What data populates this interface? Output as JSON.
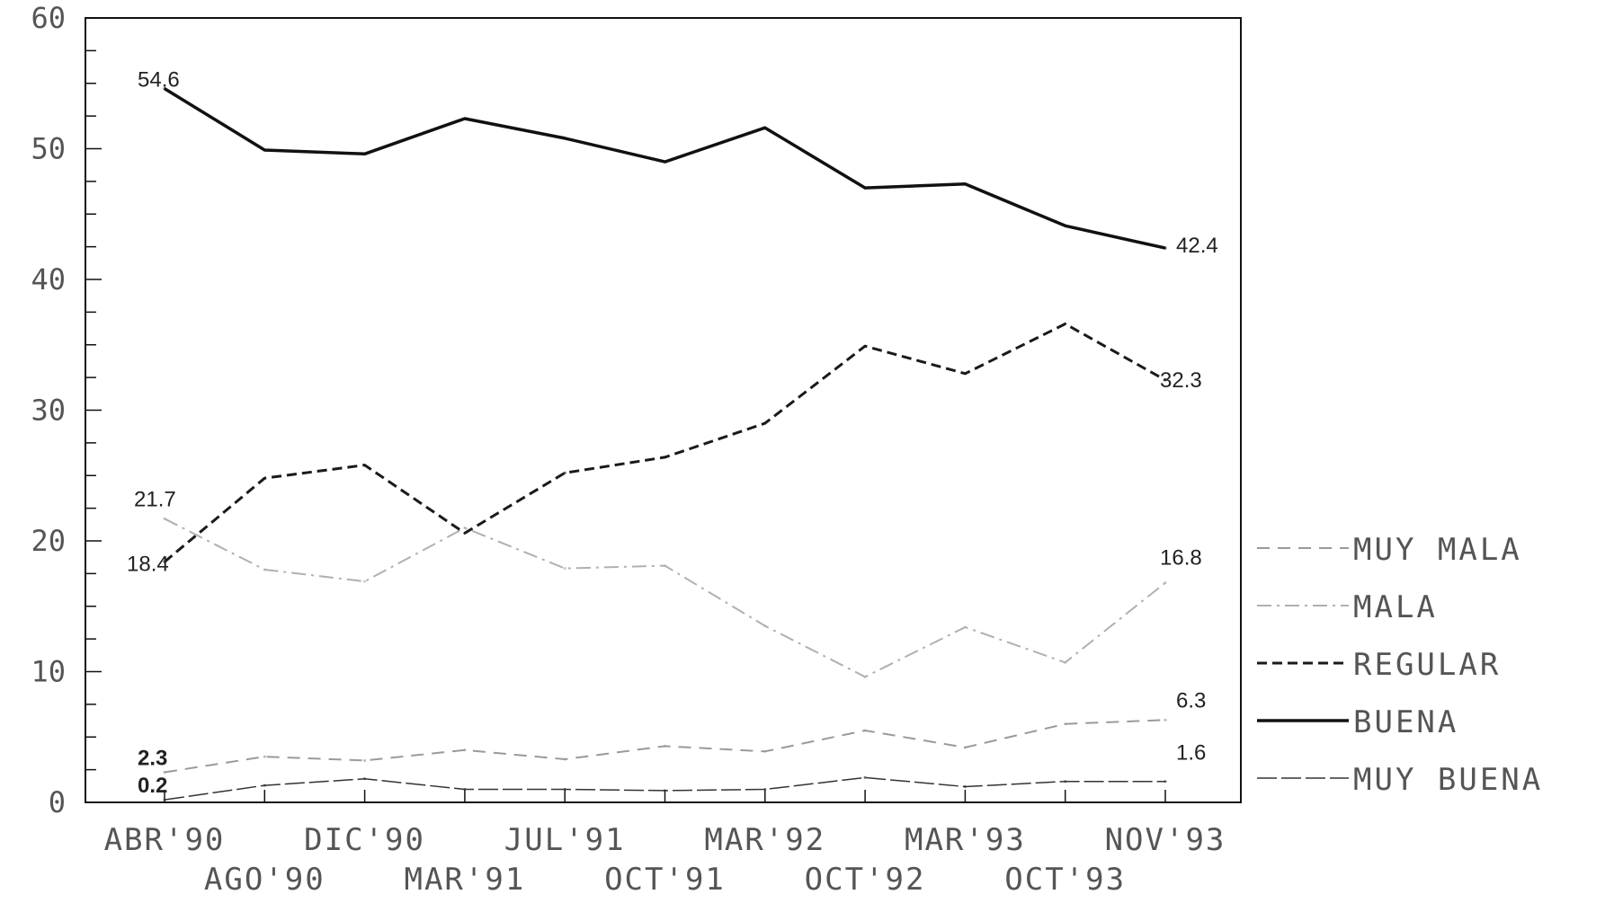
{
  "chart_data": {
    "type": "line",
    "title": "",
    "xlabel": "",
    "ylabel": "",
    "ylim": [
      0,
      60
    ],
    "yticks": [
      "0",
      "10",
      "20",
      "30",
      "40",
      "50",
      "60"
    ],
    "categories": [
      "ABR'90",
      "AGO'90",
      "DIC'90",
      "MAR'91",
      "JUL'91",
      "OCT'91",
      "MAR'92",
      "OCT'92",
      "MAR'93",
      "OCT'93",
      "NOV'93"
    ],
    "legend_position": "right",
    "series": [
      {
        "name": "MUY MALA",
        "style": "dashed-light",
        "color": "#9a9a9a",
        "values": [
          2.3,
          3.5,
          3.2,
          4.0,
          3.3,
          4.3,
          3.9,
          5.5,
          4.2,
          6.0,
          6.3
        ],
        "labels": [
          {
            "index": 0,
            "text": "2.3"
          },
          {
            "index": 10,
            "text": "6.3"
          }
        ]
      },
      {
        "name": "MALA",
        "style": "dashdot-light",
        "color": "#b0b0b0",
        "values": [
          21.7,
          17.8,
          16.9,
          21.0,
          17.9,
          18.1,
          13.5,
          9.6,
          13.4,
          10.7,
          16.8
        ],
        "labels": [
          {
            "index": 0,
            "text": "21.7"
          },
          {
            "index": 10,
            "text": "16.8"
          }
        ]
      },
      {
        "name": "REGULAR",
        "style": "dashed-dark",
        "color": "#1a1a1a",
        "values": [
          18.4,
          24.8,
          25.8,
          20.6,
          25.2,
          26.4,
          29.0,
          34.9,
          32.8,
          36.6,
          32.3
        ],
        "labels": [
          {
            "index": 0,
            "text": "18.4"
          },
          {
            "index": 10,
            "text": "32.3"
          }
        ]
      },
      {
        "name": "BUENA",
        "style": "solid-thick",
        "color": "#111111",
        "values": [
          54.6,
          49.9,
          49.6,
          52.3,
          50.8,
          49.0,
          51.6,
          47.0,
          47.3,
          44.1,
          42.4
        ],
        "labels": [
          {
            "index": 0,
            "text": "54.6"
          },
          {
            "index": 10,
            "text": "42.4"
          }
        ]
      },
      {
        "name": "MUY BUENA",
        "style": "thin",
        "color": "#333333",
        "values": [
          0.2,
          1.3,
          1.8,
          1.0,
          1.0,
          0.9,
          1.0,
          1.9,
          1.2,
          1.6,
          1.6
        ],
        "labels": [
          {
            "index": 0,
            "text": "0.2"
          },
          {
            "index": 10,
            "text": "1.6"
          }
        ]
      }
    ],
    "legend_order": [
      "MUY MALA",
      "MALA",
      "REGULAR",
      "BUENA",
      "MUY BUENA"
    ]
  }
}
